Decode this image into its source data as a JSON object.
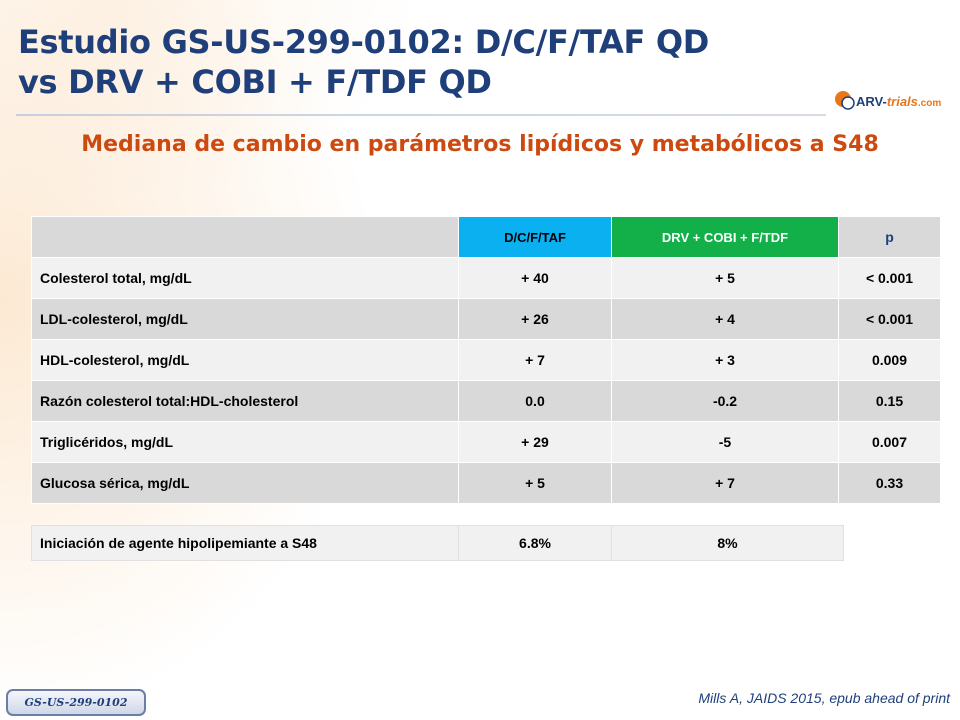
{
  "header": {
    "title_line1": "Estudio GS-US-299-0102: D/C/F/TAF QD",
    "title_line2": "vs DRV + COBI + F/TDF QD",
    "logo_text_a": "ARV-",
    "logo_text_b": "trials",
    "logo_text_c": ".com"
  },
  "subtitle": "Mediana de cambio en parámetros lipídicos y metabólicos a S48",
  "table": {
    "columns": [
      "",
      "D/C/F/TAF",
      "DRV + COBI + F/TDF",
      "p"
    ],
    "rows": [
      {
        "label": "Colesterol total, mg/dL",
        "dcf": "+ 40",
        "drv": "+ 5",
        "p": "< 0.001"
      },
      {
        "label": "LDL-colesterol, mg/dL",
        "dcf": "+ 26",
        "drv": "+ 4",
        "p": "< 0.001"
      },
      {
        "label": "HDL-colesterol, mg/dL",
        "dcf": "+ 7",
        "drv": "+ 3",
        "p": "0.009"
      },
      {
        "label": "Razón colesterol total:HDL-cholesterol",
        "dcf": "0.0",
        "drv": "-0.2",
        "p": "0.15"
      },
      {
        "label": "Triglicéridos, mg/dL",
        "dcf": "+ 29",
        "drv": "-5",
        "p": "0.007"
      },
      {
        "label": "Glucosa sérica, mg/dL",
        "dcf": "+ 5",
        "drv": "+ 7",
        "p": "0.33"
      }
    ]
  },
  "initiation": {
    "label": "Iniciación de agente hipolipemiante a S48",
    "dcf": "6.8%",
    "drv": "8%"
  },
  "footer": {
    "badge": "GS-US-299-0102",
    "citation": "Mills A, JAIDS 2015, epub ahead of print"
  },
  "colors": {
    "title": "#1f3f7a",
    "subtitle": "#cc4a10",
    "dcf_header": "#0bb0f0",
    "drv_header": "#13b04a"
  }
}
